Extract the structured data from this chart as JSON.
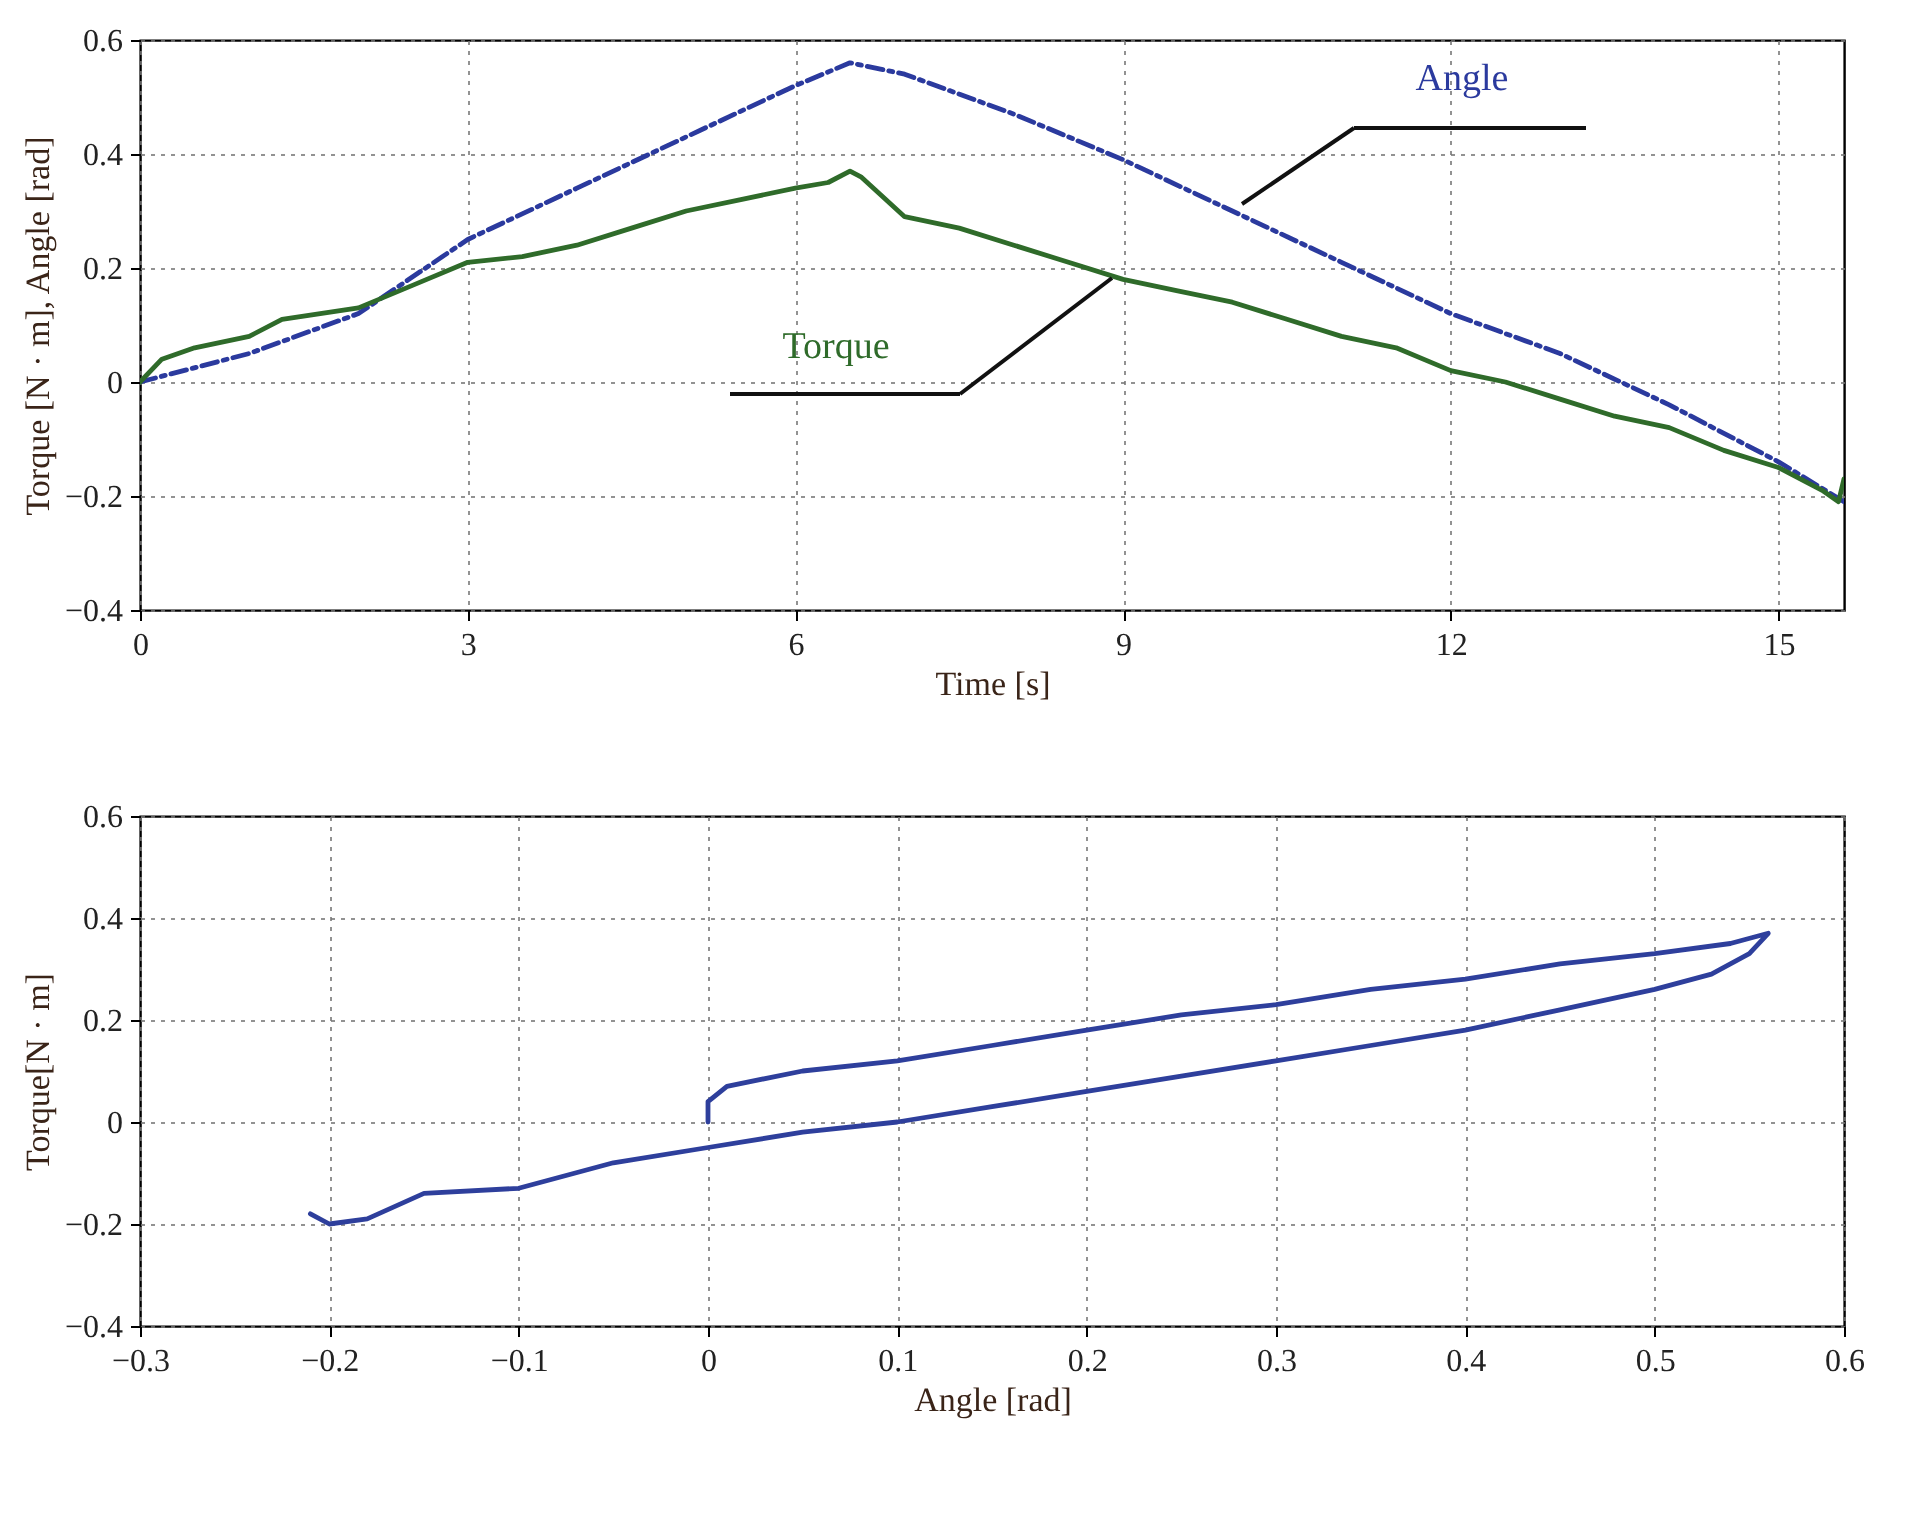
{
  "chart_data": [
    {
      "type": "line",
      "xlabel": "Time [s]",
      "ylabel": "Torque [N · m],  Angle [rad]",
      "xlim": [
        0,
        15.6
      ],
      "xticks": [
        0,
        3,
        6,
        9,
        12,
        15
      ],
      "ylim": [
        -0.4,
        0.6
      ],
      "yticks": [
        -0.4,
        -0.2,
        0,
        0.2,
        0.4,
        0.6
      ],
      "grid": true,
      "series": [
        {
          "name": "Angle",
          "color": "#2b3a9e",
          "line_style": "dashed",
          "x": [
            0,
            1,
            2,
            3,
            4,
            5,
            6,
            6.5,
            7,
            8,
            9,
            10,
            11,
            12,
            13,
            14,
            15,
            15.6
          ],
          "values": [
            0,
            0.05,
            0.12,
            0.25,
            0.34,
            0.43,
            0.52,
            0.56,
            0.54,
            0.47,
            0.39,
            0.3,
            0.21,
            0.12,
            0.05,
            -0.04,
            -0.14,
            -0.21
          ]
        },
        {
          "name": "Torque",
          "color": "#2f6b2a",
          "line_style": "solid",
          "x": [
            0,
            0.2,
            0.5,
            1,
            1.3,
            2,
            2.5,
            3,
            3.5,
            4,
            4.5,
            5,
            5.5,
            6,
            6.3,
            6.5,
            6.6,
            7,
            7.5,
            8,
            8.5,
            9,
            9.5,
            10,
            10.5,
            11,
            11.5,
            12,
            12.5,
            13,
            13.5,
            14,
            14.5,
            15,
            15.4,
            15.55,
            15.6
          ],
          "values": [
            0,
            0.04,
            0.06,
            0.08,
            0.11,
            0.13,
            0.17,
            0.21,
            0.22,
            0.24,
            0.27,
            0.3,
            0.32,
            0.34,
            0.35,
            0.37,
            0.36,
            0.29,
            0.27,
            0.24,
            0.21,
            0.18,
            0.16,
            0.14,
            0.11,
            0.08,
            0.06,
            0.02,
            0,
            -0.03,
            -0.06,
            -0.08,
            -0.12,
            -0.15,
            -0.19,
            -0.21,
            -0.17
          ]
        }
      ]
    },
    {
      "type": "line",
      "xlabel": "Angle [rad]",
      "ylabel": "Torque[N · m]",
      "xlim": [
        -0.3,
        0.6
      ],
      "xticks": [
        -0.3,
        -0.2,
        -0.1,
        0,
        0.1,
        0.2,
        0.3,
        0.4,
        0.5,
        0.6
      ],
      "ylim": [
        -0.4,
        0.6
      ],
      "yticks": [
        -0.4,
        -0.2,
        0,
        0.2,
        0.4,
        0.6
      ],
      "grid": true,
      "series": [
        {
          "color": "#2e3f9c",
          "line_style": "solid",
          "x": [
            0,
            0,
            0.01,
            0.05,
            0.1,
            0.15,
            0.2,
            0.25,
            0.3,
            0.35,
            0.4,
            0.45,
            0.5,
            0.54,
            0.56,
            0.55,
            0.53,
            0.5,
            0.45,
            0.4,
            0.35,
            0.3,
            0.25,
            0.2,
            0.15,
            0.1,
            0.05,
            0,
            -0.05,
            -0.1,
            -0.15,
            -0.18,
            -0.2,
            -0.21
          ],
          "values": [
            0,
            0.04,
            0.07,
            0.1,
            0.12,
            0.15,
            0.18,
            0.21,
            0.23,
            0.26,
            0.28,
            0.31,
            0.33,
            0.35,
            0.37,
            0.33,
            0.29,
            0.26,
            0.22,
            0.18,
            0.15,
            0.12,
            0.09,
            0.06,
            0.03,
            0,
            -0.02,
            -0.05,
            -0.08,
            -0.13,
            -0.14,
            -0.19,
            -0.2,
            -0.18
          ]
        }
      ]
    }
  ]
}
